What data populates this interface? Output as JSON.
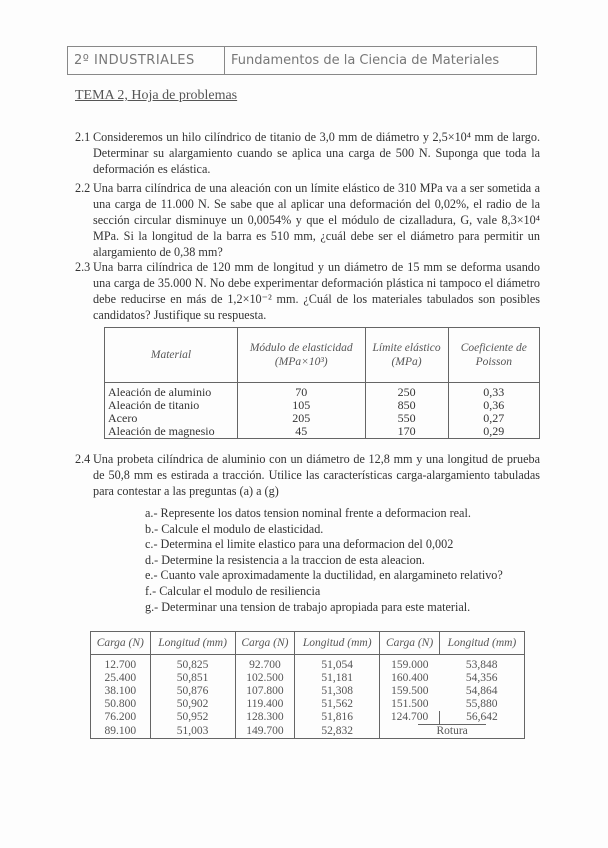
{
  "header": {
    "course": "2º INDUSTRIALES",
    "subject": "Fundamentos de la Ciencia de Materiales"
  },
  "title": "TEMA 2, Hoja de problemas",
  "problems": [
    {
      "num": "2.1",
      "text": "Consideremos un hilo cilíndrico de titanio de 3,0 mm de diámetro y 2,5×10⁴ mm de largo. Determinar su alargamiento cuando se aplica una carga de 500 N. Suponga que toda la deformación es elástica."
    },
    {
      "num": "2.2",
      "text": "Una barra cilíndrica de una aleación con un límite elástico de 310 MPa va a ser sometida a una carga de 11.000 N. Se sabe que al aplicar una deformación del 0,02%, el radio de la sección circular disminuye un 0,0054% y que el módulo de cizalladura, G, vale 8,3×10⁴ MPa. Si la longitud de la barra es 510 mm, ¿cuál debe ser el diámetro para permitir un alargamiento de 0,38 mm?"
    },
    {
      "num": "2.3",
      "text": "Una barra cilíndrica de 120 mm de longitud y un diámetro de 15 mm se deforma usando una carga de 35.000 N. No debe experimentar deformación plástica ni tampoco el diámetro debe reducirse en más de 1,2×10⁻² mm. ¿Cuál de los materiales tabulados son posibles candidatos? Justifique su respuesta."
    },
    {
      "num": "2.4",
      "text": "Una probeta cilíndrica de aluminio con un diámetro de 12,8 mm y una longitud de prueba de 50,8 mm es estirada a tracción. Utilice las características carga-alargamiento tabuladas para contestar a las preguntas (a) a (g)"
    }
  ],
  "materials_table": {
    "headers": [
      "Material",
      "Módulo de elasticidad (MPa×10³)",
      "Límite elástico (MPa)",
      "Coeficiente de Poisson"
    ],
    "rows": [
      [
        "Aleación de aluminio",
        "70",
        "250",
        "0,33"
      ],
      [
        "Aleación de titanio",
        "105",
        "850",
        "0,36"
      ],
      [
        "Acero",
        "205",
        "550",
        "0,27"
      ],
      [
        "Aleación de magnesio",
        "45",
        "170",
        "0,29"
      ]
    ]
  },
  "questions": [
    "a.- Represente los datos tension nominal frente a deformacion real.",
    "b.- Calcule el modulo de elasticidad.",
    "c.- Determina el limite elastico para una deformacion del 0,002",
    "d.- Determine la resistencia a la traccion de esta aleacion.",
    "e.- Cuanto vale aproximadamente la ductilidad, en alargamineto relativo?",
    "f.- Calcular el modulo de resiliencia",
    "g.- Determinar una tension de trabajo apropiada para este material."
  ],
  "load_table": {
    "headers": [
      "Carga (N)",
      "Longitud (mm)",
      "Carga (N)",
      "Longitud (mm)",
      "Carga (N)",
      "Longitud (mm)"
    ],
    "rows": [
      [
        "12.700",
        "50,825",
        "92.700",
        "51,054",
        "159.000",
        "53,848"
      ],
      [
        "25.400",
        "50,851",
        "102.500",
        "51,181",
        "160.400",
        "54,356"
      ],
      [
        "38.100",
        "50,876",
        "107.800",
        "51,308",
        "159.500",
        "54,864"
      ],
      [
        "50.800",
        "50,902",
        "119.400",
        "51,562",
        "151.500",
        "55,880"
      ],
      [
        "76.200",
        "50,952",
        "128.300",
        "51,816",
        "124.700",
        "56,642"
      ],
      [
        "89.100",
        "51,003",
        "149.700",
        "52,832",
        "",
        ""
      ]
    ],
    "footnote": "Rotura"
  }
}
